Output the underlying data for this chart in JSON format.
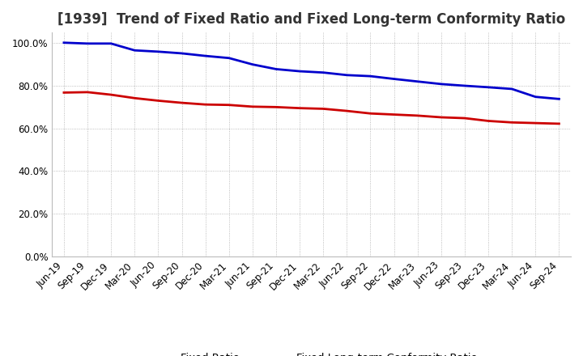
{
  "title": "[1939]  Trend of Fixed Ratio and Fixed Long-term Conformity Ratio",
  "x_labels": [
    "Jun-19",
    "Sep-19",
    "Dec-19",
    "Mar-20",
    "Jun-20",
    "Sep-20",
    "Dec-20",
    "Mar-21",
    "Jun-21",
    "Sep-21",
    "Dec-21",
    "Mar-22",
    "Jun-22",
    "Sep-22",
    "Dec-22",
    "Mar-23",
    "Jun-23",
    "Sep-23",
    "Dec-23",
    "Mar-24",
    "Jun-24",
    "Sep-24"
  ],
  "fixed_ratio": [
    1.002,
    0.998,
    0.998,
    0.966,
    0.96,
    0.952,
    0.94,
    0.93,
    0.9,
    0.878,
    0.868,
    0.862,
    0.85,
    0.845,
    0.832,
    0.82,
    0.808,
    0.8,
    0.793,
    0.785,
    0.748,
    0.738
  ],
  "fixed_lt_ratio": [
    0.768,
    0.77,
    0.758,
    0.742,
    0.73,
    0.72,
    0.712,
    0.71,
    0.702,
    0.7,
    0.695,
    0.692,
    0.682,
    0.67,
    0.665,
    0.66,
    0.652,
    0.648,
    0.635,
    0.628,
    0.625,
    0.622
  ],
  "fixed_ratio_color": "#0000cc",
  "fixed_lt_ratio_color": "#cc0000",
  "ylim": [
    0.0,
    1.05
  ],
  "yticks": [
    0.0,
    0.2,
    0.4,
    0.6,
    0.8,
    1.0
  ],
  "ytick_labels": [
    "0.0%",
    "20.0%",
    "40.0%",
    "60.0%",
    "80.0%",
    "100.0%"
  ],
  "legend_fixed_ratio": "Fixed Ratio",
  "legend_fixed_lt_ratio": "Fixed Long-term Conformity Ratio",
  "background_color": "#ffffff",
  "grid_color": "#aaaaaa",
  "title_fontsize": 12,
  "tick_fontsize": 8.5,
  "legend_fontsize": 9.5,
  "linewidth": 2.0
}
